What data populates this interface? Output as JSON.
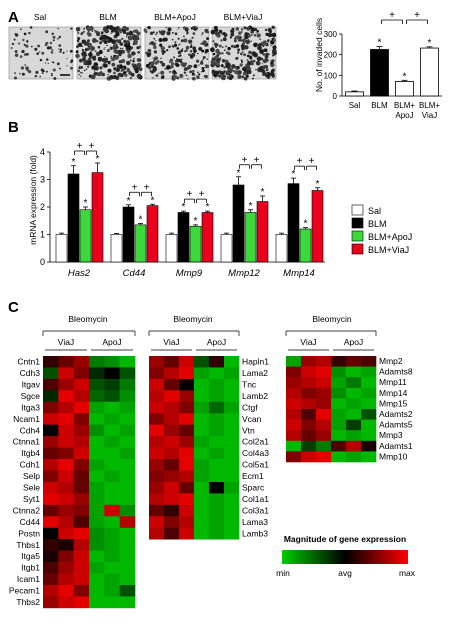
{
  "panel_a": {
    "letter": "A",
    "micrograph_labels": [
      "Sal",
      "BLM",
      "BLM+ApoJ",
      "BLM+ViaJ"
    ],
    "micrograph_density": [
      0.06,
      0.55,
      0.35,
      0.5
    ]
  },
  "panel_b": {
    "letter": "B"
  },
  "panel_c": {
    "letter": "C"
  },
  "colors": {
    "sal": "#ffffff",
    "blm": "#000000",
    "apoj": "#3cd83c",
    "viaj": "#e8001c"
  },
  "chart_data": [
    {
      "type": "bar",
      "ylabel": "No. of invaded cells",
      "ylim": [
        0,
        300
      ],
      "yticks": [
        0,
        100,
        200,
        300
      ],
      "categories": [
        "Sal",
        "BLM",
        "BLM+ ApoJ",
        "BLM+ ViaJ"
      ],
      "values": [
        20,
        225,
        70,
        232
      ],
      "errors": [
        4,
        14,
        6,
        6
      ],
      "stars": [
        "",
        "*",
        "*",
        "*"
      ],
      "plus_marks": [
        "+",
        "+"
      ]
    },
    {
      "type": "bar",
      "ylabel": "mRNA expression (fold)",
      "ylim": [
        0,
        4
      ],
      "yticks": [
        0,
        1,
        2,
        3,
        4
      ],
      "categories": [
        "Has2",
        "Cd44",
        "Mmp9",
        "Mmp12",
        "Mmp14"
      ],
      "series": [
        {
          "name": "Sal",
          "values": [
            1.0,
            1.0,
            1.0,
            1.0,
            1.0
          ],
          "errors": [
            0.05,
            0.04,
            0.05,
            0.05,
            0.05
          ]
        },
        {
          "name": "BLM",
          "values": [
            3.2,
            2.0,
            1.8,
            2.8,
            2.85
          ],
          "errors": [
            0.3,
            0.08,
            0.05,
            0.3,
            0.2
          ]
        },
        {
          "name": "BLM+ApoJ",
          "values": [
            1.9,
            1.35,
            1.3,
            1.8,
            1.2
          ],
          "errors": [
            0.1,
            0.05,
            0.05,
            0.1,
            0.05
          ]
        },
        {
          "name": "BLM+ViaJ",
          "values": [
            3.25,
            2.05,
            1.8,
            2.2,
            2.6
          ],
          "errors": [
            0.35,
            0.05,
            0.05,
            0.2,
            0.1
          ]
        }
      ],
      "stars": "*",
      "plus_marks": "+"
    },
    {
      "type": "heatmap",
      "title": "Bleomycin",
      "group_labels": [
        "ViaJ",
        "ApoJ"
      ],
      "rows": [
        "Cntn1",
        "Cdh3",
        "Itgav",
        "Sgce",
        "Itga3",
        "Ncam1",
        "Cdh4",
        "Ctnna1",
        "Itgb4",
        "Cdh1",
        "Selp",
        "Sele",
        "Syt1",
        "Ctnna2",
        "Cd44",
        "Postn",
        "Thbs1",
        "Itga5",
        "Itgb1",
        "Icam1",
        "Pecam1",
        "Thbs2"
      ],
      "values": [
        [
          0.6,
          0.7,
          0.8,
          0.2,
          0.15,
          0.05
        ],
        [
          0.3,
          0.9,
          0.75,
          0.4,
          0.5,
          0.3
        ],
        [
          0.65,
          0.8,
          0.9,
          0.3,
          0.35,
          0.2
        ],
        [
          0.4,
          0.95,
          0.85,
          0.25,
          0.3,
          0.15
        ],
        [
          0.75,
          0.85,
          0.95,
          0.1,
          0.05,
          0.1
        ],
        [
          0.9,
          0.95,
          0.75,
          0.05,
          0.1,
          0.05
        ],
        [
          0.5,
          0.9,
          0.8,
          0.15,
          0.05,
          0.1
        ],
        [
          0.8,
          0.9,
          0.85,
          0.05,
          0.1,
          0.05
        ],
        [
          0.7,
          0.75,
          0.9,
          0.05,
          0.05,
          0.1
        ],
        [
          0.85,
          0.95,
          0.75,
          0.1,
          0.05,
          0.05
        ],
        [
          0.75,
          0.9,
          0.7,
          0.05,
          0.1,
          0.05
        ],
        [
          0.9,
          0.85,
          0.7,
          0.1,
          0.05,
          0.05
        ],
        [
          0.95,
          0.9,
          0.8,
          0.1,
          0.05,
          0.05
        ],
        [
          0.7,
          0.8,
          0.75,
          0.1,
          0.9,
          0.15
        ],
        [
          0.95,
          0.85,
          0.65,
          0.1,
          0.05,
          0.85
        ],
        [
          0.5,
          0.9,
          0.95,
          0.15,
          0.1,
          0.05
        ],
        [
          0.6,
          0.55,
          0.85,
          0.15,
          0.1,
          0.05
        ],
        [
          0.55,
          0.75,
          0.9,
          0.05,
          0.1,
          0.05
        ],
        [
          0.65,
          0.8,
          0.9,
          0.1,
          0.05,
          0.05
        ],
        [
          0.7,
          0.85,
          0.9,
          0.05,
          0.1,
          0.05
        ],
        [
          0.85,
          0.95,
          0.75,
          0.05,
          0.1,
          0.3
        ],
        [
          0.8,
          0.9,
          0.95,
          0.05,
          0.05,
          0.05
        ]
      ]
    },
    {
      "type": "heatmap",
      "title": "Bleomycin",
      "group_labels": [
        "ViaJ",
        "ApoJ"
      ],
      "rows": [
        "Hapln1",
        "Lama2",
        "Tnc",
        "Lamb2",
        "Ctgf",
        "Vcan",
        "Vtn",
        "Col2a1",
        "Col4a3",
        "Col5a1",
        "Ecm1",
        "Sparc",
        "Col1a1",
        "Col3a1",
        "Lama3",
        "Lamb3"
      ],
      "values": [
        [
          0.8,
          0.7,
          0.9,
          0.3,
          0.6,
          0.05
        ],
        [
          0.75,
          0.85,
          0.95,
          0.1,
          0.05,
          0.1
        ],
        [
          0.9,
          0.7,
          0.5,
          0.05,
          0.1,
          0.05
        ],
        [
          0.85,
          0.95,
          0.8,
          0.05,
          0.1,
          0.05
        ],
        [
          0.9,
          0.85,
          0.75,
          0.1,
          0.25,
          0.1
        ],
        [
          0.75,
          0.85,
          0.95,
          0.05,
          0.1,
          0.05
        ],
        [
          0.95,
          0.8,
          0.7,
          0.05,
          0.1,
          0.05
        ],
        [
          0.85,
          0.9,
          0.8,
          0.1,
          0.05,
          0.05
        ],
        [
          0.9,
          0.85,
          0.95,
          0.05,
          0.1,
          0.05
        ],
        [
          0.8,
          0.7,
          0.95,
          0.1,
          0.05,
          0.05
        ],
        [
          0.75,
          0.8,
          0.85,
          0.1,
          0.05,
          0.05
        ],
        [
          0.8,
          0.9,
          0.7,
          0.05,
          0.5,
          0.1
        ],
        [
          0.85,
          0.9,
          0.95,
          0.05,
          0.1,
          0.05
        ],
        [
          0.7,
          0.6,
          0.9,
          0.05,
          0.1,
          0.05
        ],
        [
          0.9,
          0.75,
          0.85,
          0.05,
          0.1,
          0.05
        ],
        [
          0.85,
          0.65,
          0.9,
          0.05,
          0.1,
          0.05
        ]
      ]
    },
    {
      "type": "heatmap",
      "title": "Bleomycin",
      "group_labels": [
        "ViaJ",
        "ApoJ"
      ],
      "rows": [
        "Mmp2",
        "Adamts8",
        "Mmp11",
        "Mmp14",
        "Mmp15",
        "Adamts2",
        "Adamts5",
        "Mmp3",
        "Adamts1",
        "Mmp10"
      ],
      "values": [
        [
          0.1,
          0.8,
          0.85,
          0.6,
          0.7,
          0.65
        ],
        [
          0.75,
          0.9,
          0.95,
          0.15,
          0.05,
          0.1
        ],
        [
          0.8,
          0.85,
          0.9,
          0.1,
          0.2,
          0.05
        ],
        [
          0.85,
          0.75,
          0.8,
          0.15,
          0.05,
          0.1
        ],
        [
          0.9,
          0.85,
          0.8,
          0.05,
          0.1,
          0.05
        ],
        [
          0.85,
          0.65,
          0.95,
          0.1,
          0.05,
          0.3
        ],
        [
          0.9,
          0.75,
          0.85,
          0.1,
          0.35,
          0.05
        ],
        [
          0.85,
          0.7,
          0.8,
          0.05,
          0.1,
          0.05
        ],
        [
          0.05,
          0.35,
          0.2,
          0.65,
          0.85,
          0.55
        ],
        [
          0.75,
          0.9,
          0.95,
          0.05,
          0.1,
          0.05
        ]
      ]
    }
  ],
  "color_scale": {
    "title": "Magnitude of gene expression",
    "min_label": "min",
    "mid_label": "avg",
    "max_label": "max",
    "low_color": "#00cc00",
    "mid_color": "#000000",
    "high_color": "#ff0000"
  }
}
